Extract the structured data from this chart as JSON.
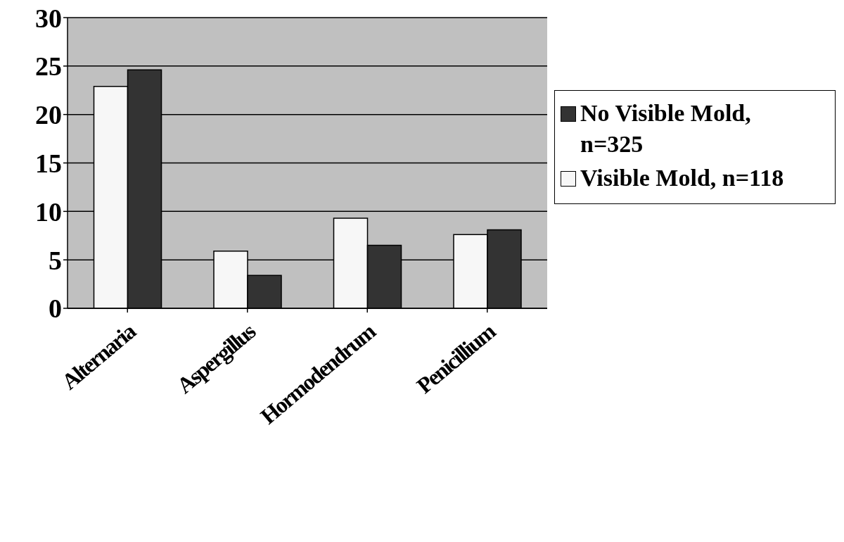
{
  "chart_data": {
    "type": "bar",
    "categories": [
      "Alternaria",
      "Aspergillus",
      "Hormodendrum",
      "Penicillium"
    ],
    "series": [
      {
        "name": "Visible Mold, n=118",
        "color": "#f7f7f7",
        "values": [
          22.9,
          5.9,
          9.3,
          7.6
        ]
      },
      {
        "name": "No Visible Mold, n=325",
        "color": "#333333",
        "values": [
          24.6,
          3.4,
          6.5,
          8.1
        ]
      }
    ],
    "ylim": [
      0,
      30
    ],
    "yticks": [
      0,
      5,
      10,
      15,
      20,
      25,
      30
    ],
    "grid": "y",
    "legend": "right"
  }
}
